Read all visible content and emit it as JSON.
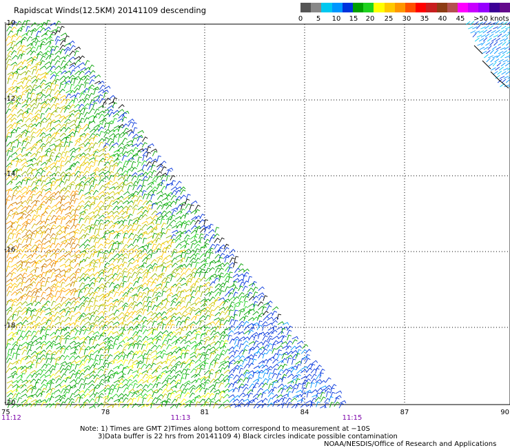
{
  "title": "Rapidscat Winds(12.5KM) 20141109 descending",
  "legend": {
    "colors": [
      "#555555",
      "#888888",
      "#00c8f0",
      "#0096ff",
      "#0032dc",
      "#00a000",
      "#1ed21e",
      "#ffff00",
      "#ffc800",
      "#ff9600",
      "#ff5000",
      "#ff0000",
      "#c81e1e",
      "#8c3c14",
      "#b45050",
      "#ff00ff",
      "#c800ff",
      "#9600ff",
      "#3c0096",
      "#640a8c"
    ],
    "ticks": [
      "0",
      "5",
      "10",
      "15",
      "20",
      "25",
      "30",
      "35",
      "40",
      "45",
      ">50 knots"
    ]
  },
  "map": {
    "lat_labels": [
      "-10",
      "-12",
      "-14",
      "-16",
      "-18",
      "-20"
    ],
    "lon_labels": [
      "75",
      "78",
      "81",
      "84",
      "87",
      "90"
    ],
    "time_labels": [
      "11:12",
      "11:13",
      "11:15"
    ],
    "lat_range": [
      -20,
      -10
    ],
    "lon_range": [
      75,
      90
    ]
  },
  "notes": {
    "line1": "Note: 1) Times are GMT 2)Times along bottom correspond to measurement at −10S",
    "line2": "3)Data buffer is 22 hrs from 20141109 4) Black circles indicate possible contamination",
    "credit": "NOAA/NESDIS/Office of Research and Applications"
  }
}
